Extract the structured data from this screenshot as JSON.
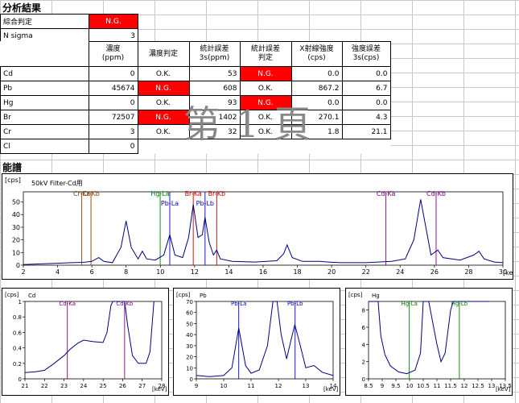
{
  "title": "分析結果",
  "summary": {
    "label": "綜合判定",
    "value": "N.G."
  },
  "nsigma": {
    "label": "N sigma",
    "value": "3"
  },
  "columns": [
    {
      "l1": "濃度",
      "l2": "(ppm)"
    },
    {
      "l1": "濃度判定",
      "l2": ""
    },
    {
      "l1": "統計誤差",
      "l2": "3s(ppm)"
    },
    {
      "l1": "統計誤差",
      "l2": "判定"
    },
    {
      "l1": "X射線強度",
      "l2": "(cps)"
    },
    {
      "l1": "強度誤差",
      "l2": "3s(cps)"
    }
  ],
  "rows": [
    {
      "el": "Cd",
      "conc": "0",
      "cj": "O.K.",
      "err": "53",
      "ej": "N.G.",
      "int": "0.0",
      "ie": "0.0"
    },
    {
      "el": "Pb",
      "conc": "45674",
      "cj": "N.G.",
      "err": "608",
      "ej": "O.K.",
      "int": "867.2",
      "ie": "6.7"
    },
    {
      "el": "Hg",
      "conc": "0",
      "cj": "O.K.",
      "err": "93",
      "ej": "N.G.",
      "int": "0.0",
      "ie": "0.0"
    },
    {
      "el": "Br",
      "conc": "72507",
      "cj": "N.G.",
      "err": "1402",
      "ej": "O.K.",
      "int": "270.1",
      "ie": "4.3"
    },
    {
      "el": "Cr",
      "conc": "3",
      "cj": "O.K.",
      "err": "32",
      "ej": "O.K.",
      "int": "1.8",
      "ie": "21.1"
    },
    {
      "el": "Cl",
      "conc": "0",
      "cj": "",
      "err": "",
      "ej": "",
      "int": "",
      "ie": ""
    }
  ],
  "watermark": "第 1 頁",
  "spectrum_title": "能譜",
  "colors": {
    "ng": "#ff0000",
    "cd": "#800080",
    "pb": "#0000c0",
    "hg": "#008000",
    "br": "#c00000",
    "cr": "#804000",
    "curve": "#000080"
  },
  "chart_data": [
    {
      "type": "line",
      "title": "50kV Filter-Cd用",
      "ylabel": "[cps]",
      "xlabel": "[keV]",
      "xlim": [
        2,
        30
      ],
      "ylim": [
        0,
        58
      ],
      "xticks": [
        2,
        4,
        6,
        8,
        10,
        12,
        14,
        16,
        18,
        20,
        22,
        24,
        26,
        28,
        30
      ],
      "yticks": [
        0,
        10,
        20,
        30,
        40,
        50
      ],
      "markers": [
        {
          "label": "Cr-Ka",
          "x": 5.41,
          "color": "cr",
          "row": 0
        },
        {
          "label": "Cr-Kb",
          "x": 5.95,
          "color": "cr",
          "row": 0
        },
        {
          "label": "Hg-La",
          "x": 9.99,
          "color": "hg",
          "row": 0
        },
        {
          "label": "Pb-La",
          "x": 10.55,
          "color": "pb",
          "row": 1
        },
        {
          "label": "Br-Ka",
          "x": 11.92,
          "color": "br",
          "row": 0
        },
        {
          "label": "Pb-Lb",
          "x": 12.61,
          "color": "pb",
          "row": 1
        },
        {
          "label": "Br-Kb",
          "x": 13.29,
          "color": "br",
          "row": 0
        },
        {
          "label": "Cd-Ka",
          "x": 23.17,
          "color": "cd",
          "row": 0
        },
        {
          "label": "Cd-Kb",
          "x": 26.1,
          "color": "cd",
          "row": 0
        }
      ],
      "points": [
        [
          2,
          0.5
        ],
        [
          3,
          1
        ],
        [
          4,
          1.5
        ],
        [
          4.8,
          2
        ],
        [
          5.5,
          2.2
        ],
        [
          6,
          3
        ],
        [
          6.4,
          6
        ],
        [
          6.7,
          3
        ],
        [
          7.2,
          2
        ],
        [
          7.7,
          14
        ],
        [
          8.0,
          35
        ],
        [
          8.3,
          14
        ],
        [
          8.7,
          5
        ],
        [
          8.95,
          11
        ],
        [
          9.2,
          5
        ],
        [
          9.7,
          4
        ],
        [
          10.2,
          8
        ],
        [
          10.55,
          24
        ],
        [
          10.85,
          8
        ],
        [
          11.3,
          6
        ],
        [
          11.65,
          22
        ],
        [
          11.92,
          48
        ],
        [
          12.2,
          22
        ],
        [
          12.45,
          24
        ],
        [
          12.61,
          38
        ],
        [
          12.85,
          18
        ],
        [
          13.1,
          8
        ],
        [
          13.29,
          12
        ],
        [
          13.5,
          5
        ],
        [
          14.2,
          3
        ],
        [
          15.5,
          2.5
        ],
        [
          16.8,
          3.5
        ],
        [
          17.2,
          9
        ],
        [
          17.4,
          16
        ],
        [
          17.7,
          6
        ],
        [
          18.3,
          3
        ],
        [
          19.3,
          3
        ],
        [
          19.8,
          2.5
        ],
        [
          20.5,
          2
        ],
        [
          22,
          2
        ],
        [
          23.5,
          3
        ],
        [
          24.3,
          5
        ],
        [
          24.8,
          20
        ],
        [
          25.2,
          52
        ],
        [
          25.5,
          30
        ],
        [
          25.8,
          8
        ],
        [
          26.2,
          12
        ],
        [
          26.5,
          6
        ],
        [
          27.5,
          4
        ],
        [
          28.3,
          8
        ],
        [
          28.6,
          11
        ],
        [
          28.9,
          5
        ],
        [
          29.5,
          2.5
        ],
        [
          30,
          2
        ]
      ]
    },
    {
      "type": "line",
      "title": "Cd",
      "ylabel": "[cps]",
      "xlabel": "[keV]",
      "xlim": [
        21,
        28
      ],
      "ylim": [
        0,
        1
      ],
      "xticks": [
        21,
        22,
        23,
        24,
        25,
        26,
        27,
        28
      ],
      "yticks": [
        0,
        0.2,
        0.4,
        0.6,
        0.8,
        1
      ],
      "markers": [
        {
          "label": "Cd-Ka",
          "x": 23.17,
          "color": "cd"
        },
        {
          "label": "Cd-Kb",
          "x": 26.1,
          "color": "cd"
        }
      ],
      "points": [
        [
          21,
          0.08
        ],
        [
          21.5,
          0.09
        ],
        [
          22,
          0.11
        ],
        [
          22.5,
          0.2
        ],
        [
          23,
          0.3
        ],
        [
          23.3,
          0.38
        ],
        [
          23.7,
          0.46
        ],
        [
          24,
          0.5
        ],
        [
          24.5,
          0.48
        ],
        [
          25,
          0.47
        ],
        [
          25.2,
          0.6
        ],
        [
          25.4,
          0.95
        ],
        [
          25.5,
          1.0
        ],
        [
          26.1,
          1.0
        ],
        [
          26.25,
          0.7
        ],
        [
          26.5,
          0.3
        ],
        [
          26.8,
          0.2
        ],
        [
          27.2,
          0.2
        ],
        [
          27.4,
          0.35
        ],
        [
          27.6,
          1.0
        ]
      ]
    },
    {
      "type": "line",
      "title": "Pb",
      "ylabel": "[cps]",
      "xlabel": "[keV]",
      "xlim": [
        9,
        14
      ],
      "ylim": [
        0,
        70
      ],
      "xticks": [
        9,
        10,
        11,
        12,
        13,
        14
      ],
      "yticks": [
        0,
        10,
        20,
        30,
        40,
        50,
        60,
        70
      ],
      "markers": [
        {
          "label": "Pb-La",
          "x": 10.55,
          "color": "pb"
        },
        {
          "label": "Pb-Lb",
          "x": 12.61,
          "color": "pb"
        }
      ],
      "points": [
        [
          9,
          3
        ],
        [
          9.5,
          2
        ],
        [
          10,
          3
        ],
        [
          10.3,
          10
        ],
        [
          10.55,
          46
        ],
        [
          10.8,
          12
        ],
        [
          11.0,
          5
        ],
        [
          11.3,
          8
        ],
        [
          11.6,
          30
        ],
        [
          11.8,
          70
        ],
        [
          11.95,
          70
        ],
        [
          12.1,
          40
        ],
        [
          12.3,
          18
        ],
        [
          12.45,
          34
        ],
        [
          12.6,
          49
        ],
        [
          12.8,
          30
        ],
        [
          13.0,
          10
        ],
        [
          13.3,
          12
        ],
        [
          13.6,
          6
        ],
        [
          14,
          3
        ]
      ]
    },
    {
      "type": "line",
      "title": "Hg",
      "ylabel": "[cps]",
      "xlabel": "[keV]",
      "xlim": [
        8.5,
        13.5
      ],
      "ylim": [
        0,
        9
      ],
      "xticks": [
        8.5,
        9,
        9.5,
        10,
        10.5,
        11,
        11.5,
        12,
        12.5,
        13,
        13.5
      ],
      "yticks": [
        0,
        2,
        4,
        6,
        8
      ],
      "markers": [
        {
          "label": "Hg-La",
          "x": 9.99,
          "color": "hg"
        },
        {
          "label": "Hg-Lb",
          "x": 11.82,
          "color": "hg"
        }
      ],
      "points": [
        [
          8.5,
          9
        ],
        [
          8.85,
          9
        ],
        [
          8.95,
          5
        ],
        [
          9.1,
          2.8
        ],
        [
          9.3,
          1.5
        ],
        [
          9.6,
          0.8
        ],
        [
          9.9,
          0.6
        ],
        [
          10.2,
          1.0
        ],
        [
          10.4,
          3
        ],
        [
          10.5,
          9
        ],
        [
          10.7,
          9
        ],
        [
          11.0,
          4
        ],
        [
          11.15,
          2
        ],
        [
          11.3,
          3
        ],
        [
          11.5,
          8
        ],
        [
          11.6,
          9
        ],
        [
          12.9,
          9
        ]
      ]
    }
  ]
}
